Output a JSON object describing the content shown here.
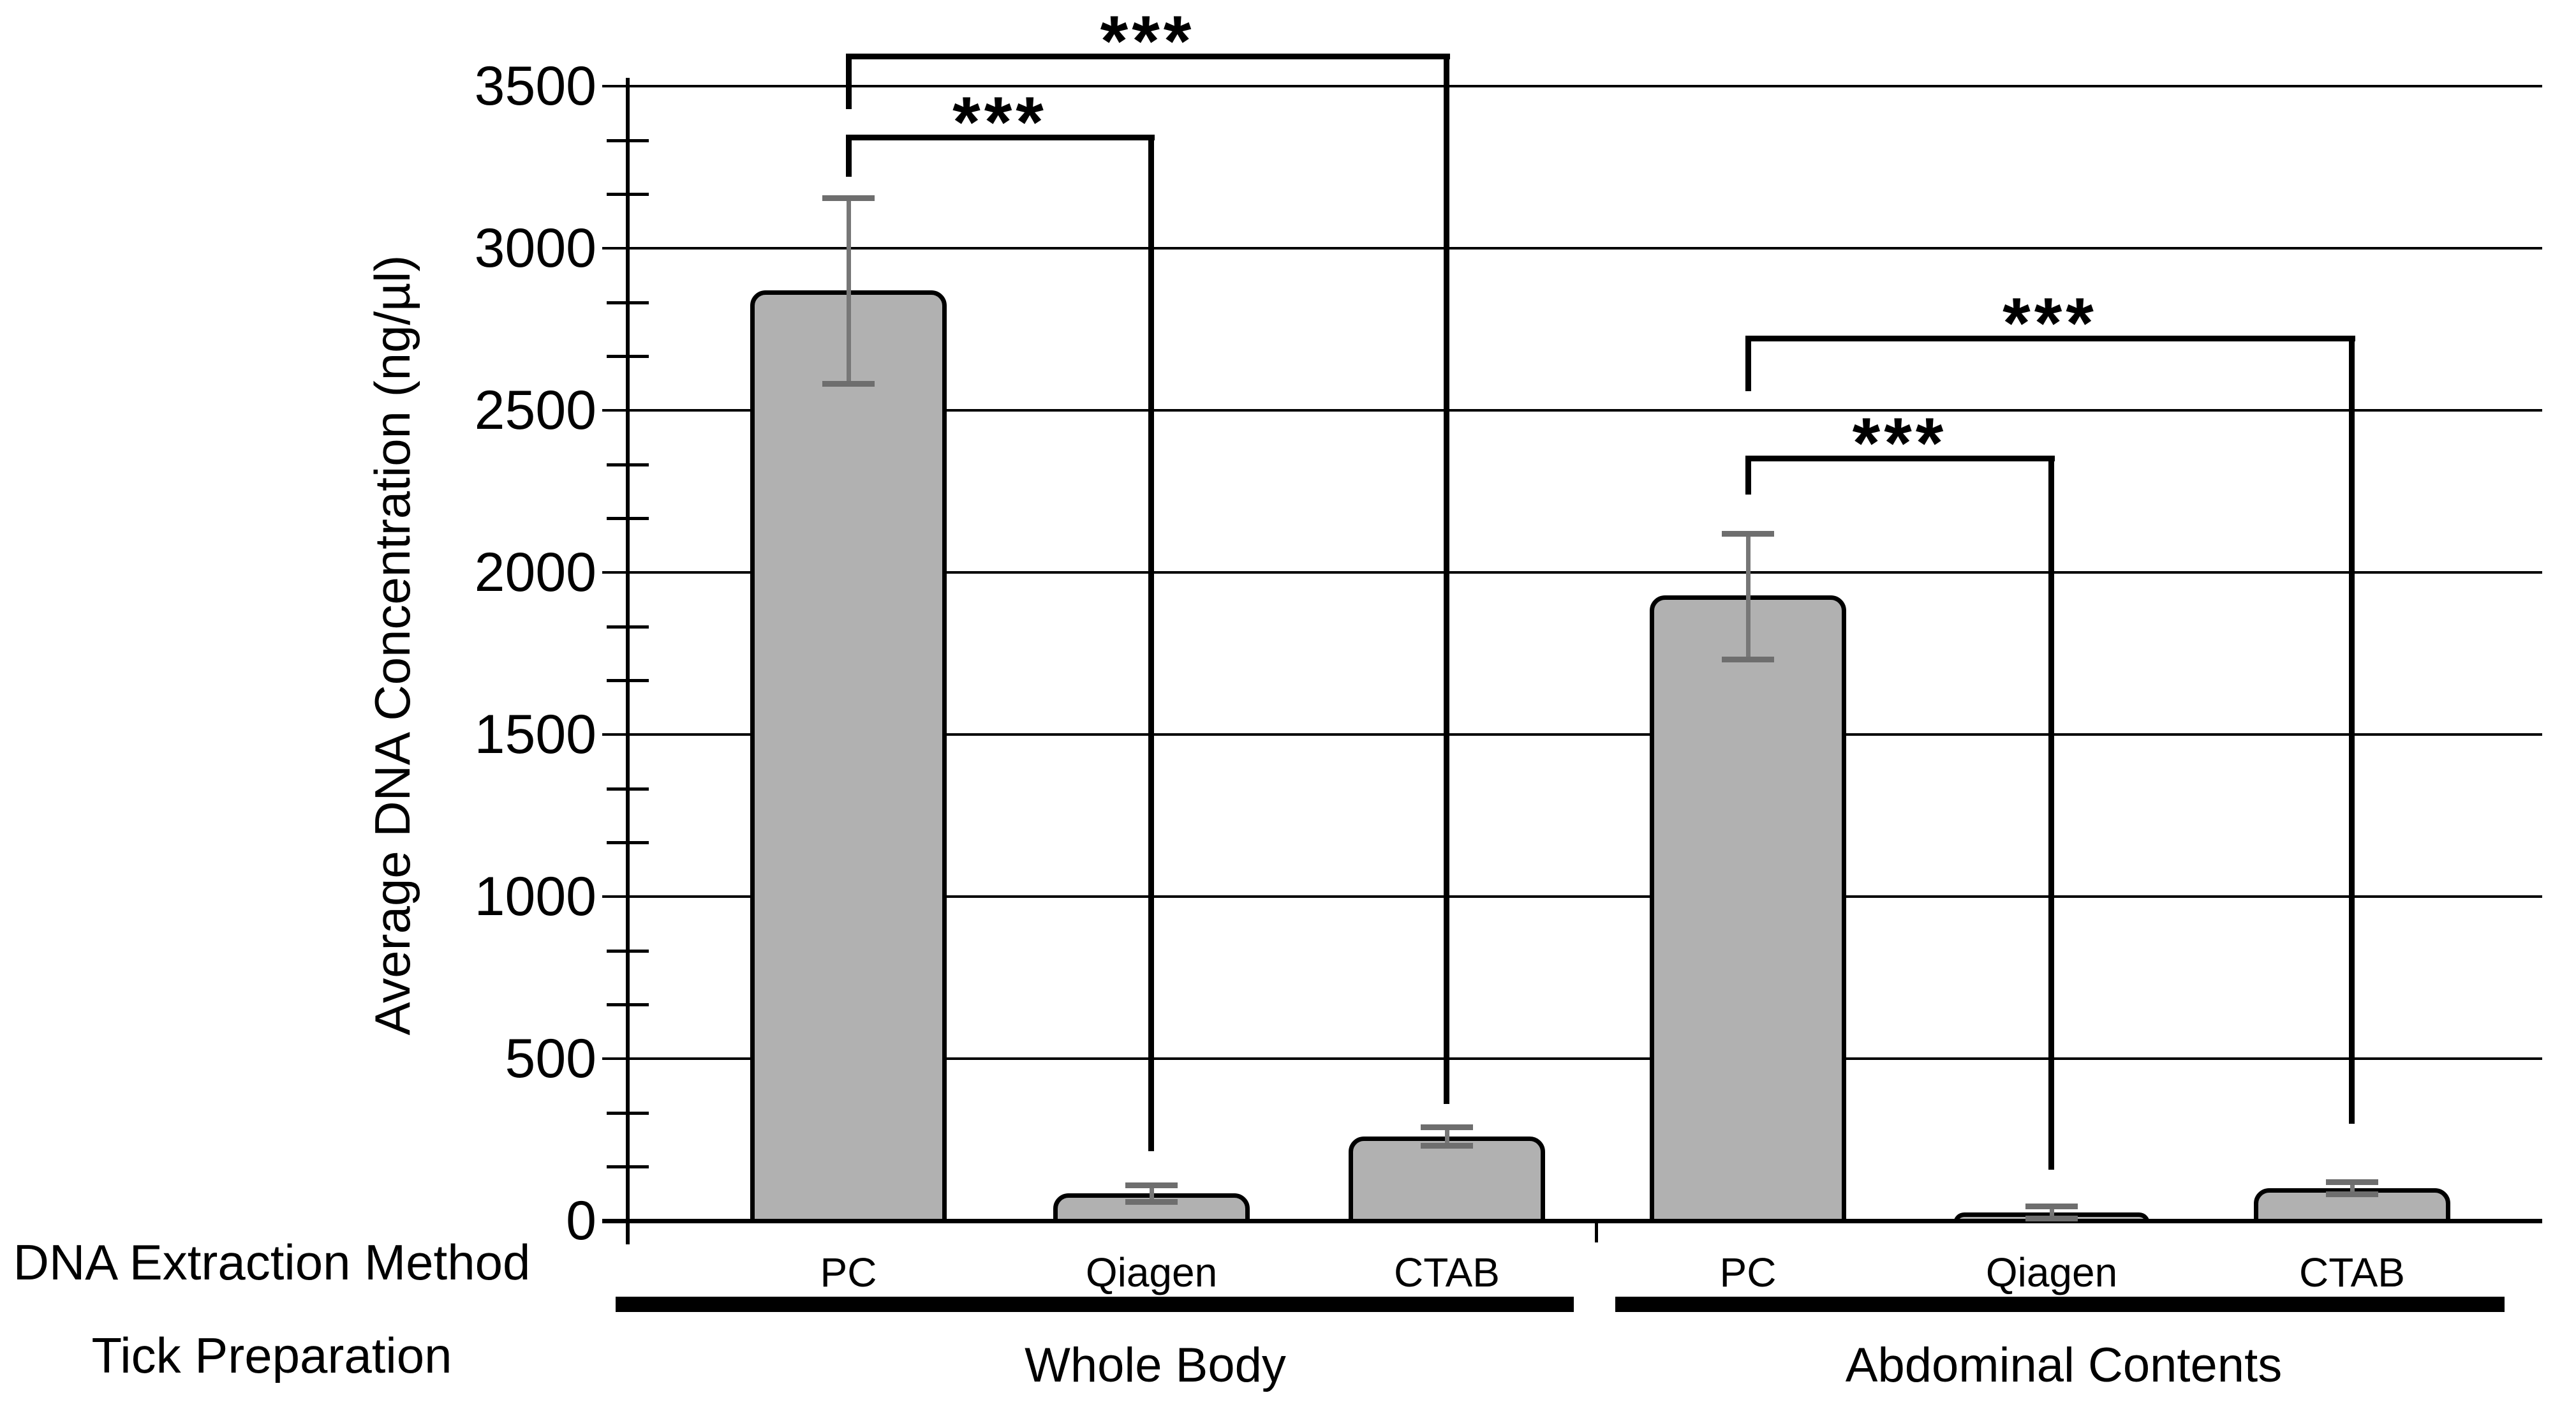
{
  "chart_data": {
    "type": "bar",
    "title": "",
    "ylabel": "Average DNA Concentration (ng/µl)",
    "xlabel_rows": [
      "DNA Extraction Method",
      "Tick Preparation"
    ],
    "ylim": [
      0,
      3500
    ],
    "ytick_step": 500,
    "yticks": [
      3500,
      3000,
      2500,
      2000,
      1500,
      1000,
      500,
      0
    ],
    "minor_ticks_per_interval": 2,
    "grid": true,
    "legend": "none",
    "bar_color": "#b1b1b1",
    "bar_border_color": "#000000",
    "error_bar_color": "#777777",
    "groups": [
      {
        "label": "Whole Body",
        "bars": [
          {
            "category": "PC",
            "value": 2870,
            "error_plus": 285,
            "error_minus": 290
          },
          {
            "category": "Qiagen",
            "value": 85,
            "error_plus": 25,
            "error_minus": 28
          },
          {
            "category": "CTAB",
            "value": 260,
            "error_plus": 30,
            "error_minus": 30
          }
        ]
      },
      {
        "label": "Abdominal Contents",
        "bars": [
          {
            "category": "PC",
            "value": 1930,
            "error_plus": 190,
            "error_minus": 200
          },
          {
            "category": "Qiagen",
            "value": 25,
            "error_plus": 20,
            "error_minus": 20
          },
          {
            "category": "CTAB",
            "value": 100,
            "error_plus": 20,
            "error_minus": 20
          }
        ]
      }
    ],
    "significance_brackets": [
      {
        "group": "Whole Body",
        "from": "PC",
        "to": "CTAB",
        "label": "***",
        "y_top": 3600,
        "left_drop_to": 3430,
        "right_drop_to": 360
      },
      {
        "group": "Whole Body",
        "from": "PC",
        "to": "Qiagen",
        "label": "***",
        "y_top": 3350,
        "left_drop_to": 3220,
        "right_drop_to": 215
      },
      {
        "group": "Abdominal Contents",
        "from": "PC",
        "to": "CTAB",
        "label": "***",
        "y_top": 2730,
        "left_drop_to": 2560,
        "right_drop_to": 300
      },
      {
        "group": "Abdominal Contents",
        "from": "PC",
        "to": "Qiagen",
        "label": "***",
        "y_top": 2360,
        "left_drop_to": 2240,
        "right_drop_to": 157
      }
    ]
  }
}
